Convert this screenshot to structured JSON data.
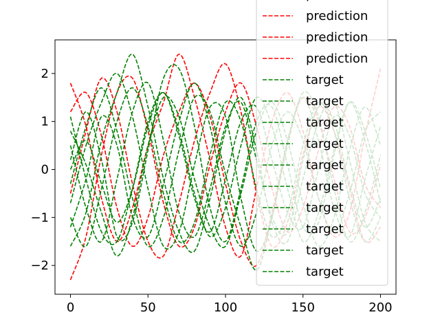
{
  "chart_data": {
    "type": "line",
    "title": "",
    "xlabel": "",
    "ylabel": "",
    "xlim": [
      -10,
      210
    ],
    "ylim": [
      -2.6,
      2.7
    ],
    "xticks": [
      0,
      50,
      100,
      150,
      200
    ],
    "yticks": [
      -2,
      -1,
      0,
      1,
      2
    ],
    "xtick_labels": [
      "0",
      "50",
      "100",
      "150",
      "200"
    ],
    "ytick_labels": [
      "−2",
      "−1",
      "0",
      "1",
      "2"
    ],
    "line_style": "dashed",
    "legend_position": "upper right",
    "legend_entries": [
      {
        "label": "prediction",
        "color": "#ff0000"
      },
      {
        "label": "prediction",
        "color": "#ff0000"
      },
      {
        "label": "prediction",
        "color": "#ff0000"
      },
      {
        "label": "prediction",
        "color": "#ff0000"
      },
      {
        "label": "target",
        "color": "#008000"
      },
      {
        "label": "target",
        "color": "#008000"
      },
      {
        "label": "target",
        "color": "#008000"
      },
      {
        "label": "target",
        "color": "#008000"
      },
      {
        "label": "target",
        "color": "#008000"
      },
      {
        "label": "target",
        "color": "#008000"
      },
      {
        "label": "target",
        "color": "#008000"
      },
      {
        "label": "target",
        "color": "#008000"
      },
      {
        "label": "target",
        "color": "#008000"
      },
      {
        "label": "target",
        "color": "#008000"
      }
    ],
    "series": [
      {
        "color": "#ff0000",
        "x": [
          0,
          10,
          20,
          30,
          40,
          50,
          60,
          70,
          80,
          90,
          100,
          110,
          120,
          130,
          140,
          150,
          160,
          170,
          180,
          190,
          200
        ],
        "y": [
          1.8,
          0.9,
          -0.6,
          -1.5,
          -0.8,
          0.5,
          1.4,
          2.4,
          1.5,
          0.2,
          -1.2,
          -1.8,
          -0.4,
          1.0,
          1.6,
          0.8,
          -0.6,
          -1.4,
          -0.9,
          0.7,
          2.1
        ]
      },
      {
        "color": "#ff0000",
        "x": [
          0,
          10,
          20,
          30,
          40,
          50,
          60,
          70,
          80,
          90,
          100,
          110,
          120,
          130,
          140,
          150,
          160,
          170,
          180,
          190,
          200
        ],
        "y": [
          1.2,
          1.6,
          0.7,
          -0.8,
          -1.6,
          -1.0,
          0.3,
          1.2,
          1.8,
          1.1,
          -0.3,
          -1.5,
          -2.0,
          -0.9,
          0.6,
          1.5,
          1.0,
          -0.2,
          -1.3,
          -1.0,
          0.1
        ]
      },
      {
        "color": "#ff0000",
        "x": [
          0,
          10,
          20,
          30,
          40,
          50,
          60,
          70,
          80,
          90,
          100,
          110,
          120,
          130,
          140,
          150,
          160,
          170,
          180,
          190,
          200
        ],
        "y": [
          -2.3,
          -1.4,
          0.3,
          1.6,
          1.9,
          0.8,
          -0.7,
          -1.6,
          -1.2,
          0.1,
          1.2,
          1.8,
          0.9,
          -0.4,
          -1.3,
          -0.8,
          0.4,
          1.3,
          0.9,
          -0.3,
          -0.8
        ]
      },
      {
        "color": "#ff0000",
        "x": [
          0,
          10,
          20,
          30,
          40,
          50,
          60,
          70,
          80,
          90,
          100,
          110,
          120,
          130,
          140,
          150,
          160,
          170,
          180,
          190,
          200
        ],
        "y": [
          -0.5,
          0.8,
          1.9,
          1.2,
          -0.3,
          -1.5,
          -1.8,
          -0.7,
          0.6,
          1.6,
          2.2,
          1.2,
          -0.5,
          -1.6,
          -1.1,
          0.3,
          1.3,
          0.8,
          -0.4,
          -1.5,
          -1.2
        ]
      },
      {
        "color": "#008000",
        "x": [
          0,
          10,
          20,
          30,
          40,
          50,
          60,
          70,
          80,
          90,
          100,
          110,
          120,
          130,
          140,
          150,
          160,
          170,
          180,
          190,
          200
        ],
        "y": [
          0.0,
          0.6,
          -0.3,
          -1.1,
          -0.4,
          0.9,
          1.6,
          0.7,
          -0.6,
          -1.3,
          -0.2,
          1.0,
          1.3,
          0.2,
          -0.9,
          -1.2,
          0.0,
          1.1,
          0.7,
          -0.5,
          -1.0
        ]
      },
      {
        "color": "#008000",
        "x": [
          0,
          10,
          20,
          30,
          40,
          50,
          60,
          70,
          80,
          90,
          100,
          110,
          120,
          130,
          140,
          150,
          160,
          170,
          180,
          190,
          200
        ],
        "y": [
          -0.7,
          0.5,
          1.4,
          2.0,
          1.1,
          -0.4,
          -1.6,
          -1.3,
          0.1,
          1.3,
          1.1,
          -0.6,
          -1.7,
          -1.0,
          0.6,
          1.5,
          0.6,
          -0.8,
          -1.4,
          -0.2,
          0.9
        ]
      },
      {
        "color": "#008000",
        "x": [
          0,
          10,
          20,
          30,
          40,
          50,
          60,
          70,
          80,
          90,
          100,
          110,
          120,
          130,
          140,
          150,
          160,
          170,
          180,
          190,
          200
        ],
        "y": [
          -1.6,
          -0.9,
          0.6,
          1.6,
          2.4,
          1.3,
          -0.2,
          -1.3,
          -1.7,
          -0.6,
          0.8,
          1.5,
          0.4,
          -1.1,
          -1.5,
          -0.2,
          1.0,
          1.4,
          0.2,
          -1.1,
          -1.5
        ]
      },
      {
        "color": "#008000",
        "x": [
          0,
          10,
          20,
          30,
          40,
          50,
          60,
          70,
          80,
          90,
          100,
          110,
          120,
          130,
          140,
          150,
          160,
          170,
          180,
          190,
          200
        ],
        "y": [
          0.2,
          1.2,
          0.2,
          -1.4,
          -1.1,
          0.4,
          1.9,
          2.1,
          0.9,
          -0.8,
          -1.5,
          -0.4,
          1.0,
          1.3,
          0.1,
          -1.2,
          -1.1,
          0.3,
          1.4,
          0.8,
          -0.4
        ]
      },
      {
        "color": "#008000",
        "x": [
          0,
          10,
          20,
          30,
          40,
          50,
          60,
          70,
          80,
          90,
          100,
          110,
          120,
          130,
          140,
          150,
          160,
          170,
          180,
          190,
          200
        ],
        "y": [
          -1.2,
          -0.2,
          1.1,
          0.5,
          -1.0,
          -1.4,
          -0.3,
          1.0,
          1.8,
          0.9,
          -0.7,
          -1.6,
          -0.9,
          0.5,
          1.2,
          0.6,
          -0.6,
          -1.3,
          -0.5,
          0.8,
          1.2
        ]
      },
      {
        "color": "#008000",
        "x": [
          0,
          10,
          20,
          30,
          40,
          50,
          60,
          70,
          80,
          90,
          100,
          110,
          120,
          130,
          140,
          150,
          160,
          170,
          180,
          190,
          200
        ],
        "y": [
          0.5,
          -0.8,
          -1.5,
          -0.2,
          1.2,
          1.8,
          0.6,
          -0.9,
          -1.4,
          -0.4,
          0.9,
          1.4,
          0.2,
          -1.0,
          -1.3,
          0.2,
          1.3,
          1.0,
          -0.3,
          -1.2,
          -0.6
        ]
      },
      {
        "color": "#008000",
        "x": [
          0,
          10,
          20,
          30,
          40,
          50,
          60,
          70,
          80,
          90,
          100,
          110,
          120,
          130,
          140,
          150,
          160,
          170,
          180,
          190,
          200
        ],
        "y": [
          -0.3,
          0.9,
          1.7,
          0.8,
          -0.6,
          -1.6,
          -1.0,
          0.4,
          1.5,
          1.2,
          -0.1,
          -1.2,
          -2.1,
          -1.0,
          0.5,
          1.6,
          1.1,
          -0.4,
          -1.5,
          -0.9,
          0.3
        ]
      },
      {
        "color": "#008000",
        "x": [
          0,
          10,
          20,
          30,
          40,
          50,
          60,
          70,
          80,
          90,
          100,
          110,
          120,
          130,
          140,
          150,
          160,
          170,
          180,
          190,
          200
        ],
        "y": [
          1.1,
          -0.2,
          -1.3,
          -1.5,
          -0.4,
          1.0,
          1.6,
          0.8,
          -0.5,
          -1.4,
          -0.8,
          0.5,
          1.5,
          0.9,
          -0.4,
          -1.5,
          -0.9,
          0.4,
          1.4,
          0.6,
          -0.7
        ]
      },
      {
        "color": "#008000",
        "x": [
          0,
          10,
          20,
          30,
          40,
          50,
          60,
          70,
          80,
          90,
          100,
          110,
          120,
          130,
          140,
          150,
          160,
          170,
          180,
          190,
          200
        ],
        "y": [
          -1.0,
          -1.6,
          -0.4,
          1.0,
          1.7,
          0.9,
          -0.5,
          -1.5,
          -1.1,
          0.3,
          1.4,
          1.0,
          -0.4,
          -1.4,
          -0.9,
          0.5,
          1.4,
          0.8,
          -0.6,
          -1.5,
          -1.0
        ]
      },
      {
        "color": "#008000",
        "x": [
          0,
          10,
          20,
          30,
          40,
          50,
          60,
          70,
          80,
          90,
          100,
          110,
          120,
          130,
          140,
          150,
          160,
          170,
          180,
          190,
          200
        ],
        "y": [
          0.8,
          0.1,
          -0.9,
          -1.8,
          -1.0,
          0.5,
          1.5,
          1.1,
          -0.2,
          -1.2,
          -1.6,
          -0.5,
          0.8,
          1.4,
          0.6,
          -0.7,
          -1.6,
          -1.0,
          0.4,
          1.3,
          0.5
        ]
      }
    ]
  }
}
